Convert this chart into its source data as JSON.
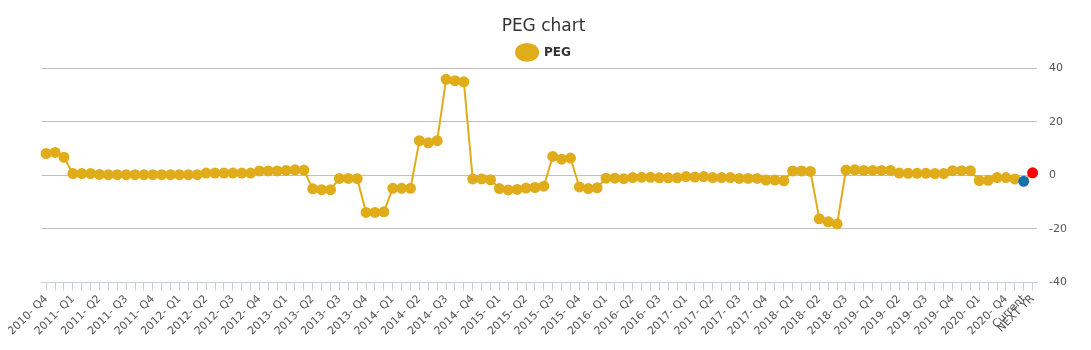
{
  "chart_data": {
    "type": "line",
    "title": "PEG chart",
    "categories": [
      "2010- Q4",
      null,
      null,
      "2011- Q1",
      null,
      null,
      "2011- Q2",
      null,
      null,
      "2011- Q3",
      null,
      null,
      "2011- Q4",
      null,
      null,
      "2012- Q1",
      null,
      null,
      "2012- Q2",
      null,
      null,
      "2012- Q3",
      null,
      null,
      "2012- Q4",
      null,
      null,
      "2013- Q1",
      null,
      null,
      "2013- Q2",
      null,
      null,
      "2013- Q3",
      null,
      null,
      "2013- Q4",
      null,
      null,
      "2014- Q1",
      null,
      null,
      "2014- Q2",
      null,
      null,
      "2014- Q3",
      null,
      null,
      "2014- Q4",
      null,
      null,
      "2015- Q1",
      null,
      null,
      "2015- Q2",
      null,
      null,
      "2015- Q3",
      null,
      null,
      "2015- Q4",
      null,
      null,
      "2016- Q1",
      null,
      null,
      "2016- Q2",
      null,
      null,
      "2016- Q3",
      null,
      null,
      "2017- Q1",
      null,
      null,
      "2017- Q2",
      null,
      null,
      "2017- Q3",
      null,
      null,
      "2017- Q4",
      null,
      null,
      "2018- Q1",
      null,
      null,
      "2018- Q2",
      null,
      null,
      "2018- Q3",
      null,
      null,
      "2019- Q1",
      null,
      null,
      "2019- Q2",
      null,
      null,
      "2019- Q3",
      null,
      null,
      "2019- Q4",
      null,
      null,
      "2020- Q1",
      null,
      null,
      "2020- Q4",
      null,
      "Current",
      "NEXT YR"
    ],
    "series": [
      {
        "name": "PEG",
        "color": "#e0ac1a",
        "values": [
          8.2,
          8.6,
          6.8,
          0.7,
          0.7,
          0.7,
          0.4,
          0.3,
          0.3,
          0.3,
          0.3,
          0.3,
          0.3,
          0.3,
          0.3,
          0.3,
          0.3,
          0.3,
          0.9,
          0.9,
          0.9,
          0.9,
          0.9,
          0.9,
          1.7,
          1.7,
          1.7,
          1.9,
          2.1,
          2.0,
          -5.0,
          -5.3,
          -5.3,
          -1.1,
          -1.1,
          -1.2,
          -13.8,
          -13.8,
          -13.6,
          -4.8,
          -4.8,
          -4.8,
          13.0,
          12.2,
          13.0,
          35.9,
          35.4,
          35.0,
          -1.3,
          -1.3,
          -1.6,
          -4.9,
          -5.4,
          -5.2,
          -4.7,
          -4.5,
          -4.0,
          7.1,
          6.1,
          6.5,
          -4.3,
          -4.9,
          -4.6,
          -1.0,
          -1.0,
          -1.2,
          -0.8,
          -0.7,
          -0.7,
          -0.9,
          -0.9,
          -0.9,
          -0.4,
          -0.6,
          -0.4,
          -0.8,
          -0.8,
          -0.8,
          -1.1,
          -1.1,
          -1.1,
          -1.7,
          -1.7,
          -2.0,
          1.7,
          1.7,
          1.5,
          -16.2,
          -17.3,
          -18.1,
          2.0,
          2.1,
          1.9,
          1.9,
          1.9,
          1.9,
          0.9,
          0.8,
          0.8,
          0.8,
          0.7,
          0.7,
          1.8,
          1.8,
          1.8,
          -1.9,
          -1.8,
          -0.8,
          -0.8,
          -1.3,
          -2.2,
          1.0
        ],
        "colors": [
          "#e0ac1a",
          "#e0ac1a",
          "#e0ac1a",
          "#e0ac1a",
          "#e0ac1a",
          "#e0ac1a",
          "#e0ac1a",
          "#e0ac1a",
          "#e0ac1a",
          "#e0ac1a",
          "#e0ac1a",
          "#e0ac1a",
          "#e0ac1a",
          "#e0ac1a",
          "#e0ac1a",
          "#e0ac1a",
          "#e0ac1a",
          "#e0ac1a",
          "#e0ac1a",
          "#e0ac1a",
          "#e0ac1a",
          "#e0ac1a",
          "#e0ac1a",
          "#e0ac1a",
          "#e0ac1a",
          "#e0ac1a",
          "#e0ac1a",
          "#e0ac1a",
          "#e0ac1a",
          "#e0ac1a",
          "#e0ac1a",
          "#e0ac1a",
          "#e0ac1a",
          "#e0ac1a",
          "#e0ac1a",
          "#e0ac1a",
          "#e0ac1a",
          "#e0ac1a",
          "#e0ac1a",
          "#e0ac1a",
          "#e0ac1a",
          "#e0ac1a",
          "#e0ac1a",
          "#e0ac1a",
          "#e0ac1a",
          "#e0ac1a",
          "#e0ac1a",
          "#e0ac1a",
          "#e0ac1a",
          "#e0ac1a",
          "#e0ac1a",
          "#e0ac1a",
          "#e0ac1a",
          "#e0ac1a",
          "#e0ac1a",
          "#e0ac1a",
          "#e0ac1a",
          "#e0ac1a",
          "#e0ac1a",
          "#e0ac1a",
          "#e0ac1a",
          "#e0ac1a",
          "#e0ac1a",
          "#e0ac1a",
          "#e0ac1a",
          "#e0ac1a",
          "#e0ac1a",
          "#e0ac1a",
          "#e0ac1a",
          "#e0ac1a",
          "#e0ac1a",
          "#e0ac1a",
          "#e0ac1a",
          "#e0ac1a",
          "#e0ac1a",
          "#e0ac1a",
          "#e0ac1a",
          "#e0ac1a",
          "#e0ac1a",
          "#e0ac1a",
          "#e0ac1a",
          "#e0ac1a",
          "#e0ac1a",
          "#e0ac1a",
          "#e0ac1a",
          "#e0ac1a",
          "#e0ac1a",
          "#e0ac1a",
          "#e0ac1a",
          "#e0ac1a",
          "#e0ac1a",
          "#e0ac1a",
          "#e0ac1a",
          "#e0ac1a",
          "#e0ac1a",
          "#e0ac1a",
          "#e0ac1a",
          "#e0ac1a",
          "#e0ac1a",
          "#e0ac1a",
          "#e0ac1a",
          "#e0ac1a",
          "#e0ac1a",
          "#e0ac1a",
          "#e0ac1a",
          "#e0ac1a",
          "#e0ac1a",
          "#e0ac1a",
          "#e0ac1a",
          "#e0ac1a",
          "#1b6fa8",
          "#ff0000"
        ]
      }
    ],
    "ylim": [
      -40,
      40
    ],
    "yticks": [
      -40,
      -20,
      0,
      20,
      40
    ],
    "grid": "y",
    "legend": "top",
    "marker": "circle",
    "line_style": "solid"
  }
}
